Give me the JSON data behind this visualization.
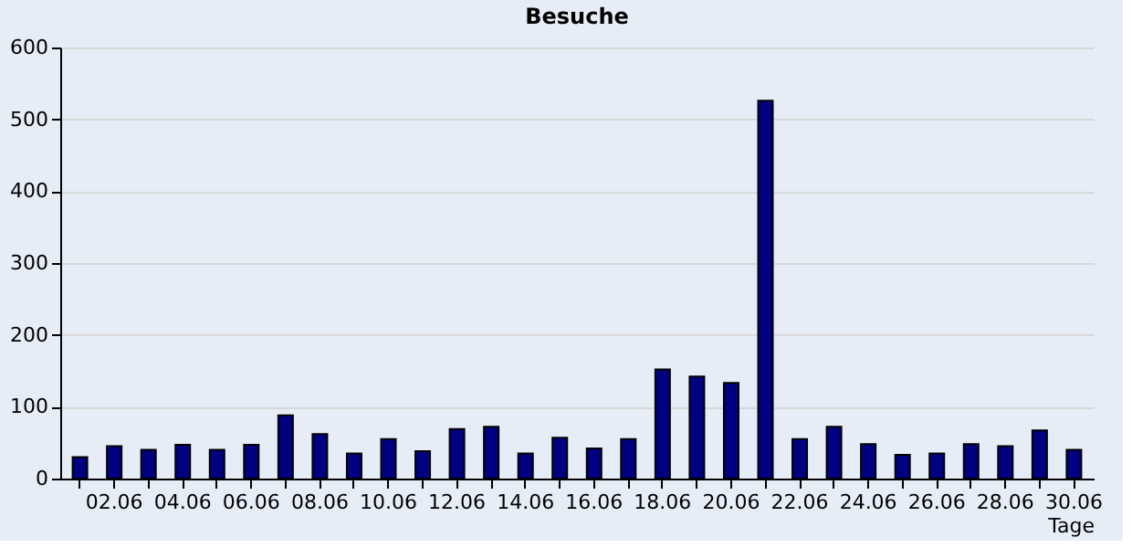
{
  "chart_data": {
    "type": "bar",
    "title": "Besuche",
    "xlabel": "Tage",
    "categories": [
      null,
      "02.06",
      null,
      "04.06",
      null,
      "06.06",
      null,
      "08.06",
      null,
      "10.06",
      null,
      "12.06",
      null,
      "14.06",
      null,
      "16.06",
      null,
      "18.06",
      null,
      "20.06",
      null,
      "22.06",
      null,
      "24.06",
      null,
      "26.06",
      null,
      "28.06",
      null,
      "30.06"
    ],
    "values": [
      30,
      45,
      40,
      47,
      40,
      47,
      88,
      62,
      35,
      55,
      38,
      69,
      72,
      35,
      57,
      42,
      55,
      152,
      142,
      133,
      526,
      55,
      72,
      48,
      33,
      35,
      48,
      45,
      67,
      40
    ],
    "color": "#000080",
    "ylim": [
      0,
      600
    ],
    "yticks": [
      0,
      100,
      200,
      300,
      400,
      500,
      600
    ],
    "grid": "y"
  }
}
